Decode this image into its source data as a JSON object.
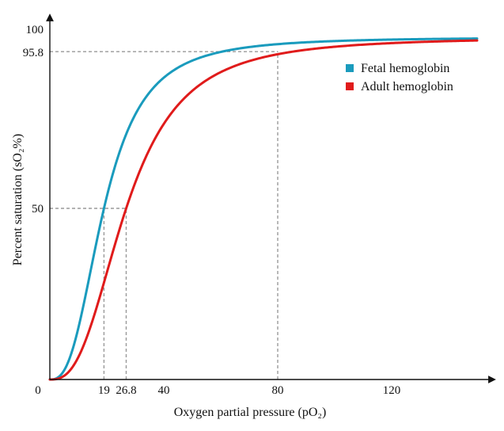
{
  "chart_data": {
    "type": "line",
    "title": "",
    "xlabel": "Oxygen partial pressure (pO₂)",
    "ylabel": "Percent saturation (sO₂%)",
    "xlim": [
      0,
      150
    ],
    "ylim": [
      0,
      100
    ],
    "origin_label": "0",
    "x_ticks": [
      19,
      26.8,
      40,
      80,
      120
    ],
    "x_tick_labels": [
      "19",
      "26.8",
      "40",
      "80",
      "120"
    ],
    "y_ticks": [
      50,
      95.8,
      100
    ],
    "y_tick_labels": [
      "50",
      "95.8",
      "100"
    ],
    "grid": false,
    "legend_position": "top-right",
    "series": [
      {
        "name": "Fetal hemoglobin",
        "color": "#1a9bbd",
        "p50": 19,
        "hill_n": 2.7,
        "x": [
          0,
          5,
          10,
          15,
          19,
          25,
          30,
          40,
          50,
          60,
          70,
          80,
          100,
          120,
          150
        ],
        "values": [
          0,
          2.6,
          15.2,
          34.8,
          50,
          66.7,
          75.9,
          86.9,
          92.6,
          95.3,
          96.9,
          97.9,
          98.9,
          99.4,
          99.7
        ]
      },
      {
        "name": "Adult hemoglobin",
        "color": "#e01b1b",
        "p50": 26.8,
        "hill_n": 2.7,
        "x": [
          0,
          5,
          10,
          15,
          20,
          26.8,
          30,
          40,
          50,
          60,
          70,
          80,
          100,
          120,
          150
        ],
        "values": [
          0,
          1.1,
          6.4,
          17.1,
          30.6,
          50,
          57.6,
          74.7,
          84.3,
          89.8,
          93.1,
          95.8,
          97.2,
          98.3,
          99.0
        ]
      }
    ],
    "reference_lines": [
      {
        "series": "Fetal hemoglobin",
        "x": 19,
        "y": 50
      },
      {
        "series": "Adult hemoglobin",
        "x": 26.8,
        "y": 50
      },
      {
        "series": "Adult hemoglobin",
        "x": 80,
        "y": 95.8
      }
    ]
  }
}
